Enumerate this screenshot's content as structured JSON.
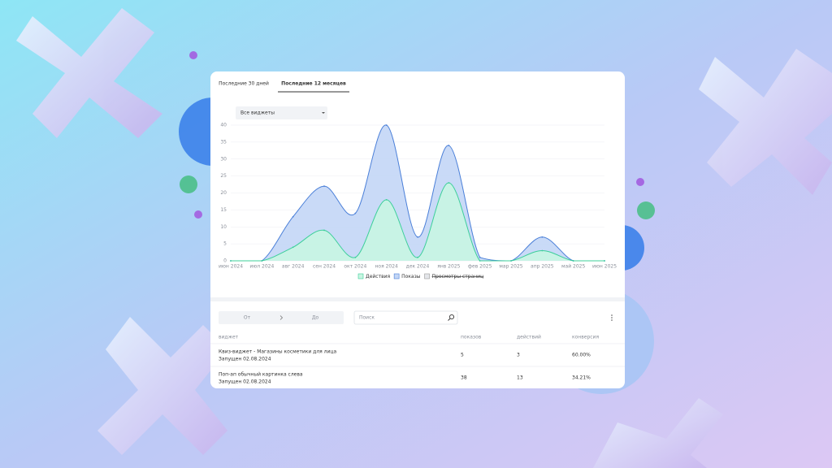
{
  "tabs": [
    "Последние 30 дней",
    "Последние 12 месяцев"
  ],
  "dropdown": "Все виджеты",
  "chart_data": {
    "type": "area",
    "categories": [
      "июн 2024",
      "июл 2024",
      "авг 2024",
      "сен 2024",
      "окт 2024",
      "ноя 2024",
      "дек 2024",
      "янв 2025",
      "фев 2025",
      "мар 2025",
      "апр 2025",
      "май 2025",
      "июн 2025"
    ],
    "series": [
      {
        "name": "Показы",
        "color": "#4a7fd8",
        "values": [
          0,
          0,
          13,
          22,
          14,
          40,
          7,
          34,
          1,
          0,
          7,
          0,
          0
        ]
      },
      {
        "name": "Действия",
        "color": "#3ccf9a",
        "values": [
          0,
          0,
          4,
          9,
          1,
          18,
          1,
          23,
          0,
          0,
          3,
          0,
          0
        ]
      }
    ],
    "hidden_series": [
      {
        "name": "Просмотры страниц"
      }
    ],
    "ylim": [
      0,
      40
    ],
    "yticks": [
      0,
      5,
      10,
      15,
      20,
      25,
      30,
      35,
      40
    ],
    "grid": true
  },
  "filters": {
    "from": "От",
    "to": "До",
    "search": "Поиск"
  },
  "table": {
    "header": [
      "виджет",
      "показов",
      "действий",
      "конверсия"
    ],
    "rows": [
      [
        "Квиз-виджет - Магазины косметики для лица",
        "Запущен 02.08.2024",
        "5",
        "3",
        "60.00%"
      ],
      [
        "Поп-ап обычный картинка слева",
        "Запущен 02.08.2024",
        "38",
        "13",
        "34.21%"
      ]
    ]
  }
}
